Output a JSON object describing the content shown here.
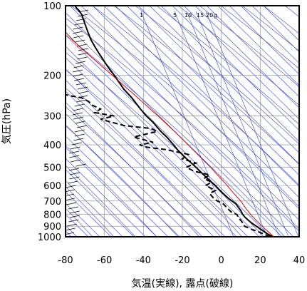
{
  "chart_data": {
    "type": "line",
    "title": "",
    "xlabel": "気温(実線), 露点(破線)",
    "ylabel": "気圧(hPa)",
    "xlim": [
      -80,
      40
    ],
    "ylim": [
      1000,
      100
    ],
    "y_scale": "log",
    "x_ticks": [
      -80,
      -60,
      -40,
      -20,
      0,
      20,
      40
    ],
    "y_ticks": [
      100,
      200,
      300,
      400,
      500,
      600,
      700,
      800,
      900,
      1000
    ],
    "mixing_ratio_labels": [
      "1",
      "5",
      "10",
      "15",
      "20",
      "g"
    ],
    "grid": true,
    "colors": {
      "temperature": "#000000",
      "dewpoint": "#000000",
      "parcel": "#e00000",
      "background_lines": "#3344cc",
      "grid": "#888888"
    },
    "series": [
      {
        "key": "temperature",
        "style": "solid",
        "p": [
          1000,
          975,
          950,
          925,
          900,
          870,
          850,
          820,
          800,
          770,
          750,
          720,
          700,
          680,
          650,
          620,
          600,
          580,
          550,
          520,
          500,
          470,
          450,
          420,
          400,
          370,
          350,
          320,
          300,
          280,
          250,
          230,
          200,
          180,
          160,
          150,
          140,
          130,
          120,
          110,
          105,
          102,
          100
        ],
        "values": [
          26.5,
          24.0,
          22.0,
          20.0,
          18.0,
          15.5,
          14.0,
          12.0,
          11.0,
          10.0,
          9.0,
          7.5,
          5.5,
          3.5,
          1.0,
          -1.5,
          -3.0,
          -5.0,
          -8.0,
          -11.0,
          -13.0,
          -16.5,
          -19.0,
          -22.5,
          -24.5,
          -28.0,
          -31.0,
          -35.0,
          -38.5,
          -41.5,
          -46.0,
          -50.0,
          -55.0,
          -59.0,
          -63.0,
          -65.0,
          -67.0,
          -68.5,
          -70.0,
          -71.5,
          -73.0,
          -74.5,
          -75.0
        ]
      },
      {
        "key": "dewpoint",
        "style": "dashed",
        "p": [
          1000,
          975,
          950,
          925,
          900,
          870,
          850,
          830,
          800,
          780,
          750,
          720,
          700,
          680,
          650,
          630,
          600,
          580,
          560,
          540,
          520,
          500,
          480,
          460,
          440,
          420,
          410,
          400,
          390,
          370,
          350,
          340,
          330,
          310,
          300,
          290,
          280,
          270,
          260,
          250,
          245,
          240
        ],
        "values": [
          25.0,
          22.0,
          19.0,
          15.0,
          12.0,
          11.0,
          10.0,
          9.0,
          8.0,
          5.0,
          3.0,
          1.0,
          -2.0,
          -4.0,
          -6.0,
          -3.0,
          -8.0,
          -5.0,
          -9.0,
          -6.0,
          -14.0,
          -18.0,
          -13.0,
          -20.0,
          -17.0,
          -28.0,
          -38.0,
          -42.0,
          -35.0,
          -45.0,
          -33.0,
          -36.0,
          -50.0,
          -62.0,
          -55.0,
          -65.0,
          -62.0,
          -66.0,
          -68.0,
          -72.0,
          -78.0,
          -82.0
        ]
      },
      {
        "key": "parcel",
        "style": "solid",
        "p": [
          1000,
          950,
          900,
          850,
          800,
          750,
          700,
          650,
          600,
          550,
          500,
          450,
          400,
          350,
          300,
          250,
          200,
          150,
          120
        ],
        "values": [
          27.0,
          24.0,
          21.0,
          18.0,
          15.0,
          12.5,
          10.0,
          6.5,
          3.0,
          -1.0,
          -5.5,
          -11.0,
          -17.0,
          -24.0,
          -32.5,
          -43.0,
          -56.0,
          -73.0,
          -84.0
        ]
      }
    ]
  }
}
